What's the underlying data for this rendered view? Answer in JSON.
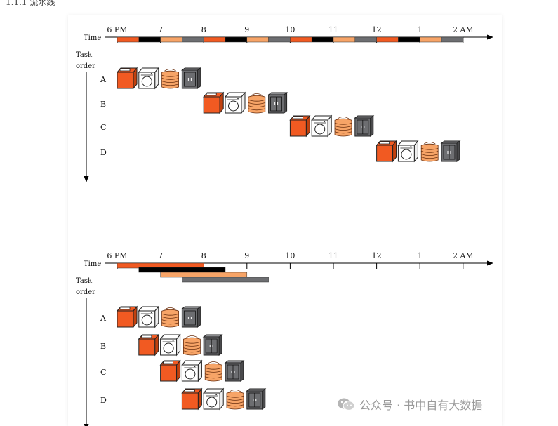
{
  "top_snippet": "1.1.1 流水线",
  "colors": {
    "washer": "#f15a22",
    "dryer": "#ffffff",
    "folder": "#f7a467",
    "storer": "#6d6e71",
    "black": "#000000"
  },
  "diagrams": [
    {
      "time_label": "Time",
      "task_order_label": [
        "Task",
        "order"
      ],
      "hours": [
        "6 PM",
        "7",
        "8",
        "9",
        "10",
        "11",
        "12",
        "1",
        "2 AM"
      ],
      "tasks": [
        "A",
        "B",
        "C",
        "D"
      ],
      "mode": "sequential"
    },
    {
      "time_label": "Time",
      "task_order_label": [
        "Task",
        "order"
      ],
      "hours": [
        "6 PM",
        "7",
        "8",
        "9",
        "10",
        "11",
        "12",
        "1",
        "2 AM"
      ],
      "tasks": [
        "A",
        "B",
        "C",
        "D"
      ],
      "mode": "pipelined"
    }
  ],
  "watermark": {
    "text": "公众号 · 书中自有大数据",
    "icon": "wechat-icon"
  }
}
